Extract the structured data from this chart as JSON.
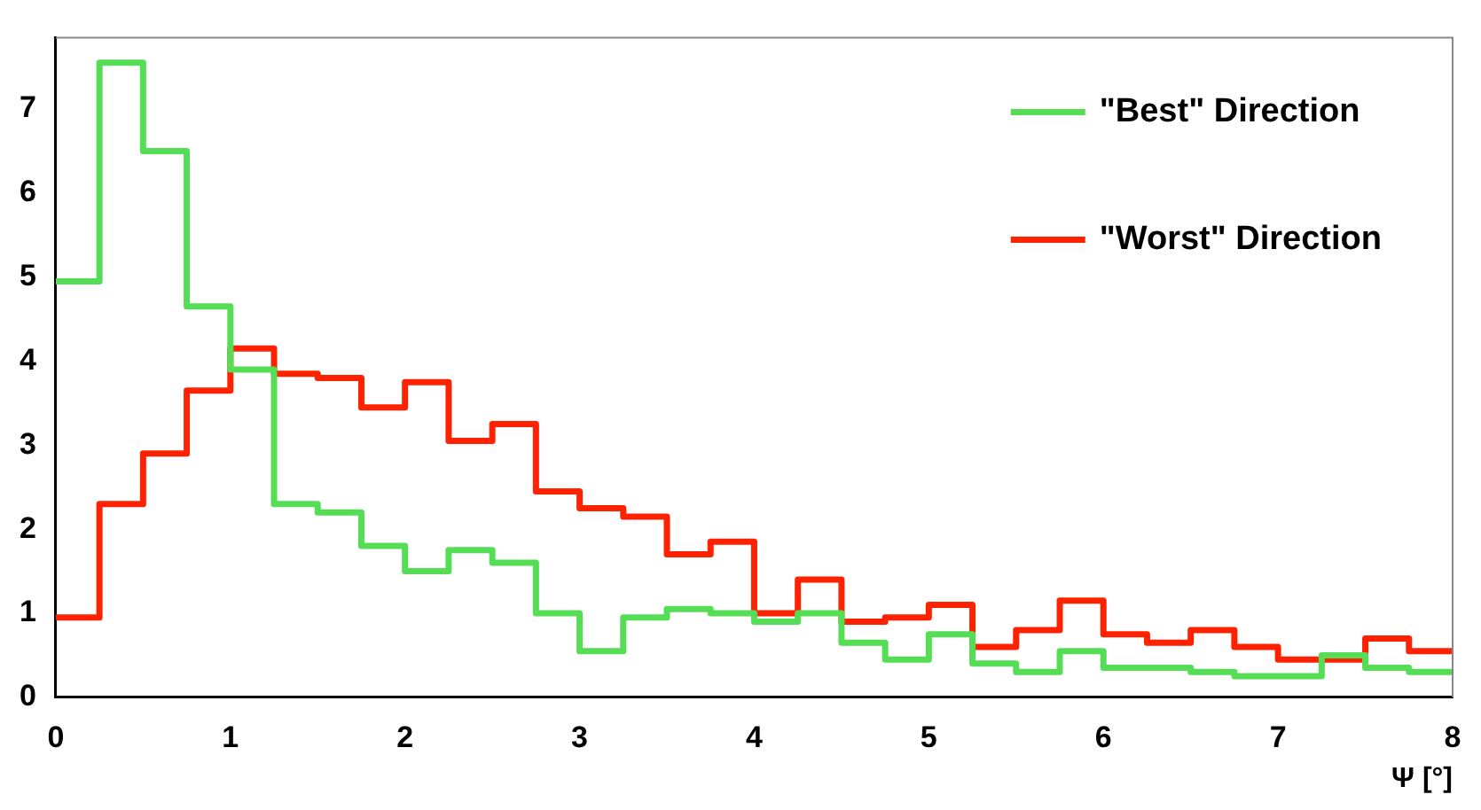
{
  "chart_data": {
    "type": "histogram",
    "xlabel": "Ψ [°]",
    "bins": [
      0,
      0.25,
      0.5,
      0.75,
      1,
      1.25,
      1.5,
      1.75,
      2,
      2.25,
      2.5,
      2.75,
      3,
      3.25,
      3.5,
      3.75,
      4,
      4.25,
      4.5,
      4.75,
      5,
      5.25,
      5.5,
      5.75,
      6,
      6.25,
      6.5,
      6.75,
      7,
      7.25,
      7.5,
      7.75,
      8
    ],
    "series": [
      {
        "name": "\"Best\" Direction",
        "color": "#55dd55",
        "values": [
          4.95,
          7.55,
          6.5,
          4.65,
          3.9,
          2.3,
          2.2,
          1.8,
          1.5,
          1.75,
          1.6,
          1.0,
          0.55,
          0.95,
          1.05,
          1.0,
          0.9,
          1.0,
          0.65,
          0.45,
          0.75,
          0.4,
          0.3,
          0.55,
          0.35,
          0.35,
          0.3,
          0.25,
          0.25,
          0.5,
          0.35,
          0.3
        ]
      },
      {
        "name": "\"Worst\" Direction",
        "color": "#ff2200",
        "values": [
          0.95,
          2.3,
          2.9,
          3.65,
          4.15,
          3.85,
          3.8,
          3.45,
          3.75,
          3.05,
          3.25,
          2.45,
          2.25,
          2.15,
          1.7,
          1.85,
          1.0,
          1.4,
          0.9,
          0.95,
          1.1,
          0.6,
          0.8,
          1.15,
          0.75,
          0.65,
          0.8,
          0.6,
          0.45,
          0.45,
          0.7,
          0.55
        ]
      }
    ],
    "xlim": [
      0,
      8
    ],
    "xticks": [
      0,
      1,
      2,
      3,
      4,
      5,
      6,
      7,
      8
    ],
    "ylim": [
      0,
      7.85
    ],
    "yticks": [
      0,
      1,
      2,
      3,
      4,
      5,
      6,
      7
    ],
    "grid": false,
    "legend": "top right"
  }
}
